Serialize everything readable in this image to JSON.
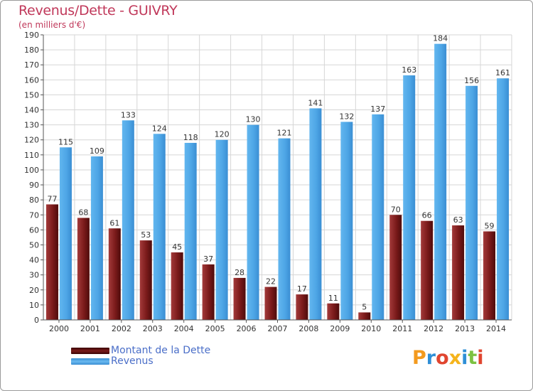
{
  "title": "Revenus/Dette - GUIVRY",
  "subtitle": "(en milliers d'€)",
  "chart_data": {
    "type": "bar",
    "title": "Revenus/Dette - GUIVRY",
    "ylabel": "(en milliers d'€)",
    "xlabel": "",
    "ylim": [
      0,
      190
    ],
    "ytick_step": 10,
    "grid": true,
    "categories": [
      "2000",
      "2001",
      "2002",
      "2003",
      "2004",
      "2005",
      "2006",
      "2007",
      "2008",
      "2009",
      "2010",
      "2011",
      "2012",
      "2013",
      "2014"
    ],
    "series": [
      {
        "name": "Montant de la Dette",
        "color": "#7a1a1a",
        "values": [
          77,
          68,
          61,
          53,
          45,
          37,
          28,
          22,
          17,
          11,
          5,
          70,
          66,
          63,
          59
        ]
      },
      {
        "name": "Revenus",
        "color": "#4ea6e6",
        "values": [
          115,
          109,
          133,
          124,
          118,
          120,
          130,
          121,
          141,
          132,
          137,
          163,
          184,
          156,
          161
        ]
      }
    ]
  },
  "legend": {
    "items": [
      {
        "label": "Montant de la Dette",
        "color": "#6b1414"
      },
      {
        "label": "Revenus",
        "color": "#4ea6e6"
      }
    ]
  },
  "logo": {
    "text": "Proxiti"
  }
}
